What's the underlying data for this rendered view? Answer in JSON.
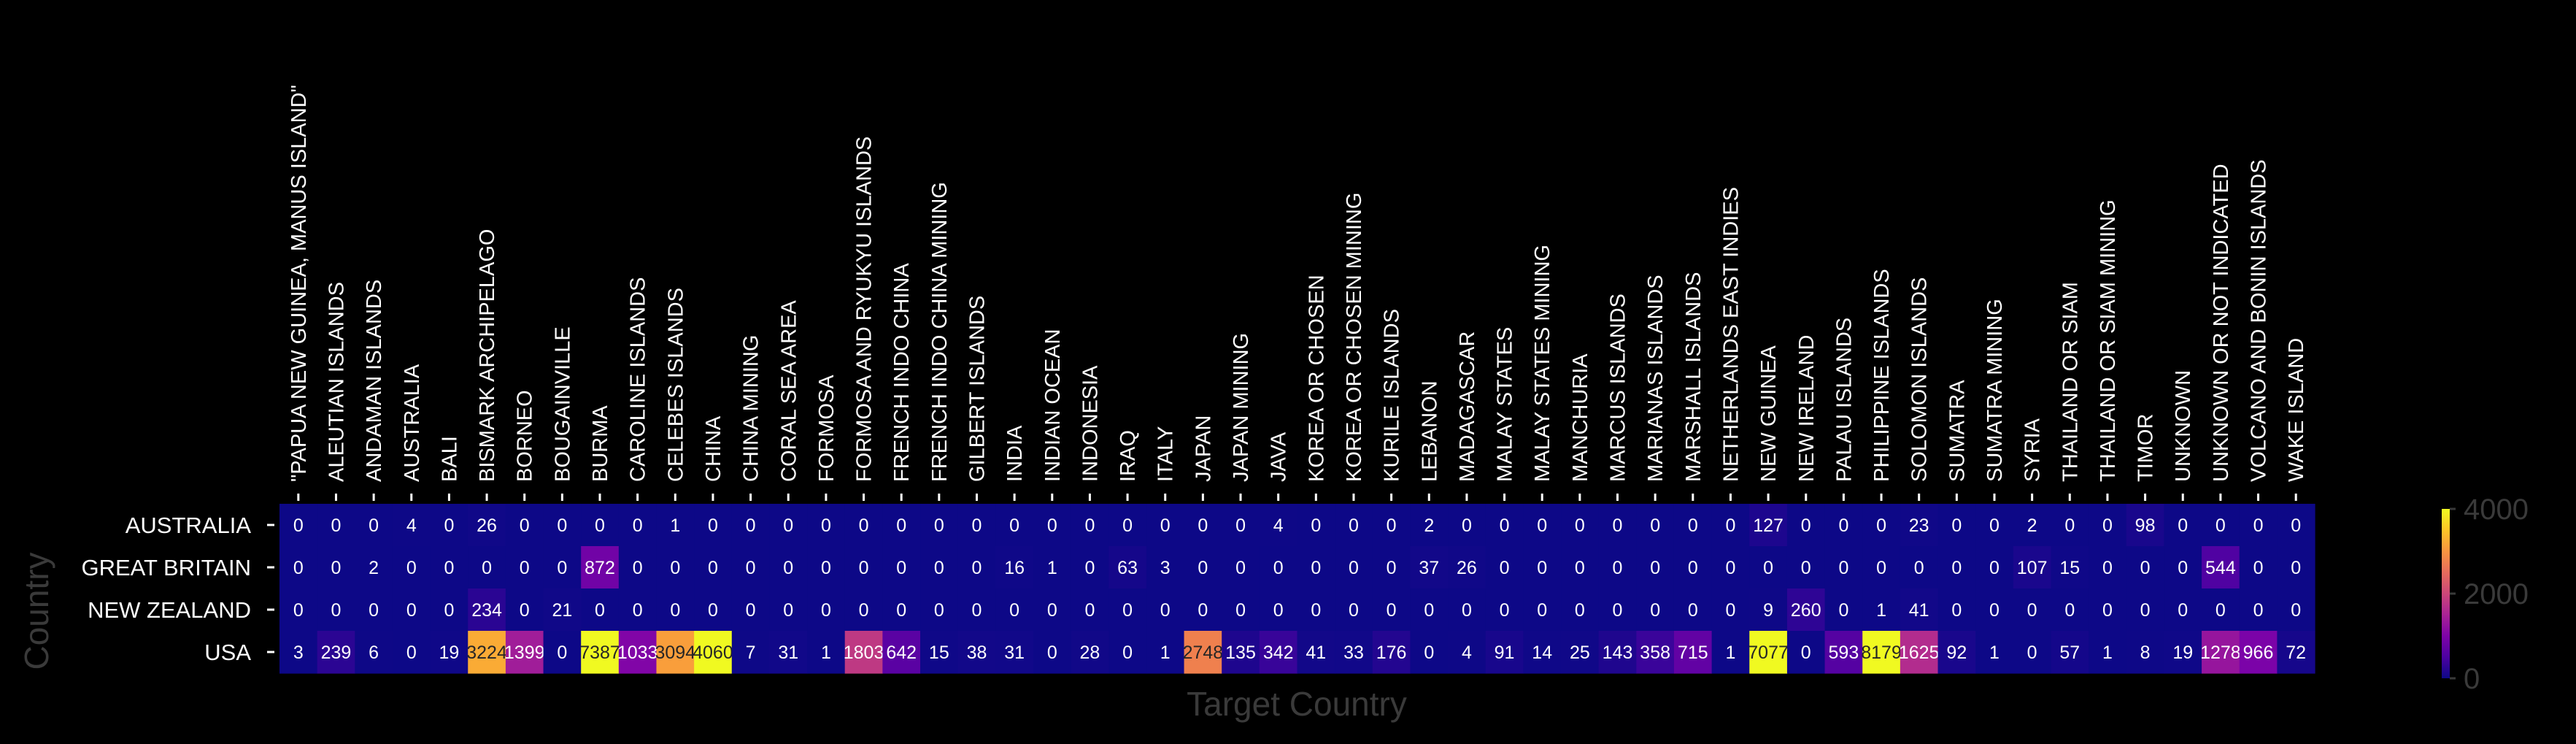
{
  "chart_data": {
    "type": "heatmap",
    "title": "",
    "xlabel": "Target Country",
    "ylabel": "Country",
    "colormap": "plasma",
    "vmin": 0,
    "vmax": 4000,
    "colorbar_ticks": [
      "0",
      "2000",
      "4000"
    ],
    "rows": [
      "AUSTRALIA",
      "GREAT BRITAIN",
      "NEW ZEALAND",
      "USA"
    ],
    "columns": [
      "\"PAPUA NEW GUINEA, MANUS ISLAND\"",
      "ALEUTIAN ISLANDS",
      "ANDAMAN ISLANDS",
      "AUSTRALIA",
      "BALI",
      "BISMARK ARCHIPELAGO",
      "BORNEO",
      "BOUGAINVILLE",
      "BURMA",
      "CAROLINE ISLANDS",
      "CELEBES ISLANDS",
      "CHINA",
      "CHINA MINING",
      "CORAL SEA AREA",
      "FORMOSA",
      "FORMOSA AND RYUKYU ISLANDS",
      "FRENCH INDO CHINA",
      "FRENCH INDO CHINA MINING",
      "GILBERT ISLANDS",
      "INDIA",
      "INDIAN OCEAN",
      "INDONESIA",
      "IRAQ",
      "ITALY",
      "JAPAN",
      "JAPAN MINING",
      "JAVA",
      "KOREA OR CHOSEN",
      "KOREA OR CHOSEN MINING",
      "KURILE ISLANDS",
      "LEBANON",
      "MADAGASCAR",
      "MALAY STATES",
      "MALAY STATES MINING",
      "MANCHURIA",
      "MARCUS ISLANDS",
      "MARIANAS ISLANDS",
      "MARSHALL ISLANDS",
      "NETHERLANDS EAST INDIES",
      "NEW GUINEA",
      "NEW IRELAND",
      "PALAU ISLANDS",
      "PHILIPPINE ISLANDS",
      "SOLOMON ISLANDS",
      "SUMATRA",
      "SUMATRA MINING",
      "SYRIA",
      "THAILAND OR SIAM",
      "THAILAND OR SIAM MINING",
      "TIMOR",
      "UNKNOWN",
      "UNKNOWN OR NOT INDICATED",
      "VOLCANO AND BONIN ISLANDS",
      "WAKE ISLAND"
    ],
    "values": [
      [
        0,
        0,
        0,
        4,
        0,
        26,
        0,
        0,
        0,
        0,
        1,
        0,
        0,
        0,
        0,
        0,
        0,
        0,
        0,
        0,
        0,
        0,
        0,
        0,
        0,
        0,
        4,
        0,
        0,
        0,
        2,
        0,
        0,
        0,
        0,
        0,
        0,
        0,
        0,
        127,
        0,
        0,
        0,
        23,
        0,
        0,
        2,
        0,
        0,
        98,
        0,
        0,
        0,
        0
      ],
      [
        0,
        0,
        2,
        0,
        0,
        0,
        0,
        0,
        872,
        0,
        0,
        0,
        0,
        0,
        0,
        0,
        0,
        0,
        0,
        16,
        1,
        0,
        63,
        3,
        0,
        0,
        0,
        0,
        0,
        0,
        37,
        26,
        0,
        0,
        0,
        0,
        0,
        0,
        0,
        0,
        0,
        0,
        0,
        0,
        0,
        0,
        107,
        15,
        0,
        0,
        0,
        544,
        0,
        0
      ],
      [
        0,
        0,
        0,
        0,
        0,
        234,
        0,
        21,
        0,
        0,
        0,
        0,
        0,
        0,
        0,
        0,
        0,
        0,
        0,
        0,
        0,
        0,
        0,
        0,
        0,
        0,
        0,
        0,
        0,
        0,
        0,
        0,
        0,
        0,
        0,
        0,
        0,
        0,
        0,
        9,
        260,
        0,
        1,
        41,
        0,
        0,
        0,
        0,
        0,
        0,
        0,
        0,
        0,
        0
      ],
      [
        3,
        239,
        6,
        0,
        19,
        3224,
        1399,
        0,
        7387,
        1033,
        3094,
        4060,
        7,
        31,
        1,
        1803,
        642,
        15,
        38,
        31,
        0,
        28,
        0,
        1,
        2748,
        135,
        342,
        41,
        33,
        176,
        0,
        4,
        91,
        14,
        25,
        143,
        358,
        715,
        1,
        7077,
        0,
        593,
        8179,
        1625,
        92,
        1,
        0,
        57,
        1,
        8,
        19,
        1278,
        966,
        72
      ]
    ],
    "cell_labels": [
      [
        "0",
        "0",
        "0",
        "4",
        "0",
        "26",
        "0",
        "0",
        "0",
        "0",
        "1",
        "0",
        "0",
        "0",
        "0",
        "0",
        "0",
        "0",
        "0",
        "0",
        "0",
        "0",
        "0",
        "0",
        "0",
        "0",
        "4",
        "0",
        "0",
        "0",
        "2",
        "0",
        "0",
        "0",
        "0",
        "0",
        "0",
        "0",
        "0",
        "127",
        "0",
        "0",
        "0",
        "23",
        "0",
        "0",
        "2",
        "0",
        "0",
        "98",
        "0",
        "0",
        "0",
        "0"
      ],
      [
        "0",
        "0",
        "2",
        "0",
        "0",
        "0",
        "0",
        "0",
        "872",
        "0",
        "0",
        "0",
        "0",
        "0",
        "0",
        "0",
        "0",
        "0",
        "0",
        "16",
        "1",
        "0",
        "63",
        "3",
        "0",
        "0",
        "0",
        "0",
        "0",
        "0",
        "37",
        "26",
        "0",
        "0",
        "0",
        "0",
        "0",
        "0",
        "0",
        "0",
        "0",
        "0",
        "0",
        "0",
        "0",
        "0",
        "107",
        "15",
        "0",
        "0",
        "0",
        "544",
        "0",
        "0"
      ],
      [
        "0",
        "0",
        "0",
        "0",
        "0",
        "234",
        "0",
        "21",
        "0",
        "0",
        "0",
        "0",
        "0",
        "0",
        "0",
        "0",
        "0",
        "0",
        "0",
        "0",
        "0",
        "0",
        "0",
        "0",
        "0",
        "0",
        "0",
        "0",
        "0",
        "0",
        "0",
        "0",
        "0",
        "0",
        "0",
        "0",
        "0",
        "0",
        "0",
        "9",
        "260",
        "0",
        "1",
        "41",
        "0",
        "0",
        "0",
        "0",
        "0",
        "0",
        "0",
        "0",
        "0",
        "0"
      ],
      [
        "3",
        "239",
        "6",
        "0",
        "19",
        "3224",
        "1399",
        "0",
        "7387",
        "1033",
        "3094",
        "4060",
        "7",
        "31",
        "1",
        "1803",
        "642",
        "15",
        "38",
        "31",
        "0",
        "28",
        "0",
        "1",
        "2748",
        "135",
        "342",
        "41",
        "33",
        "176",
        "0",
        "4",
        "91",
        "14",
        "25",
        "143",
        "358",
        "715",
        "1",
        "7077",
        "0",
        "593",
        "8179",
        "1625",
        "92",
        "1",
        "0",
        "57",
        "1",
        "8",
        "19",
        "1278",
        "966",
        "72"
      ]
    ],
    "grid": false,
    "legend": "colorbar-right"
  }
}
